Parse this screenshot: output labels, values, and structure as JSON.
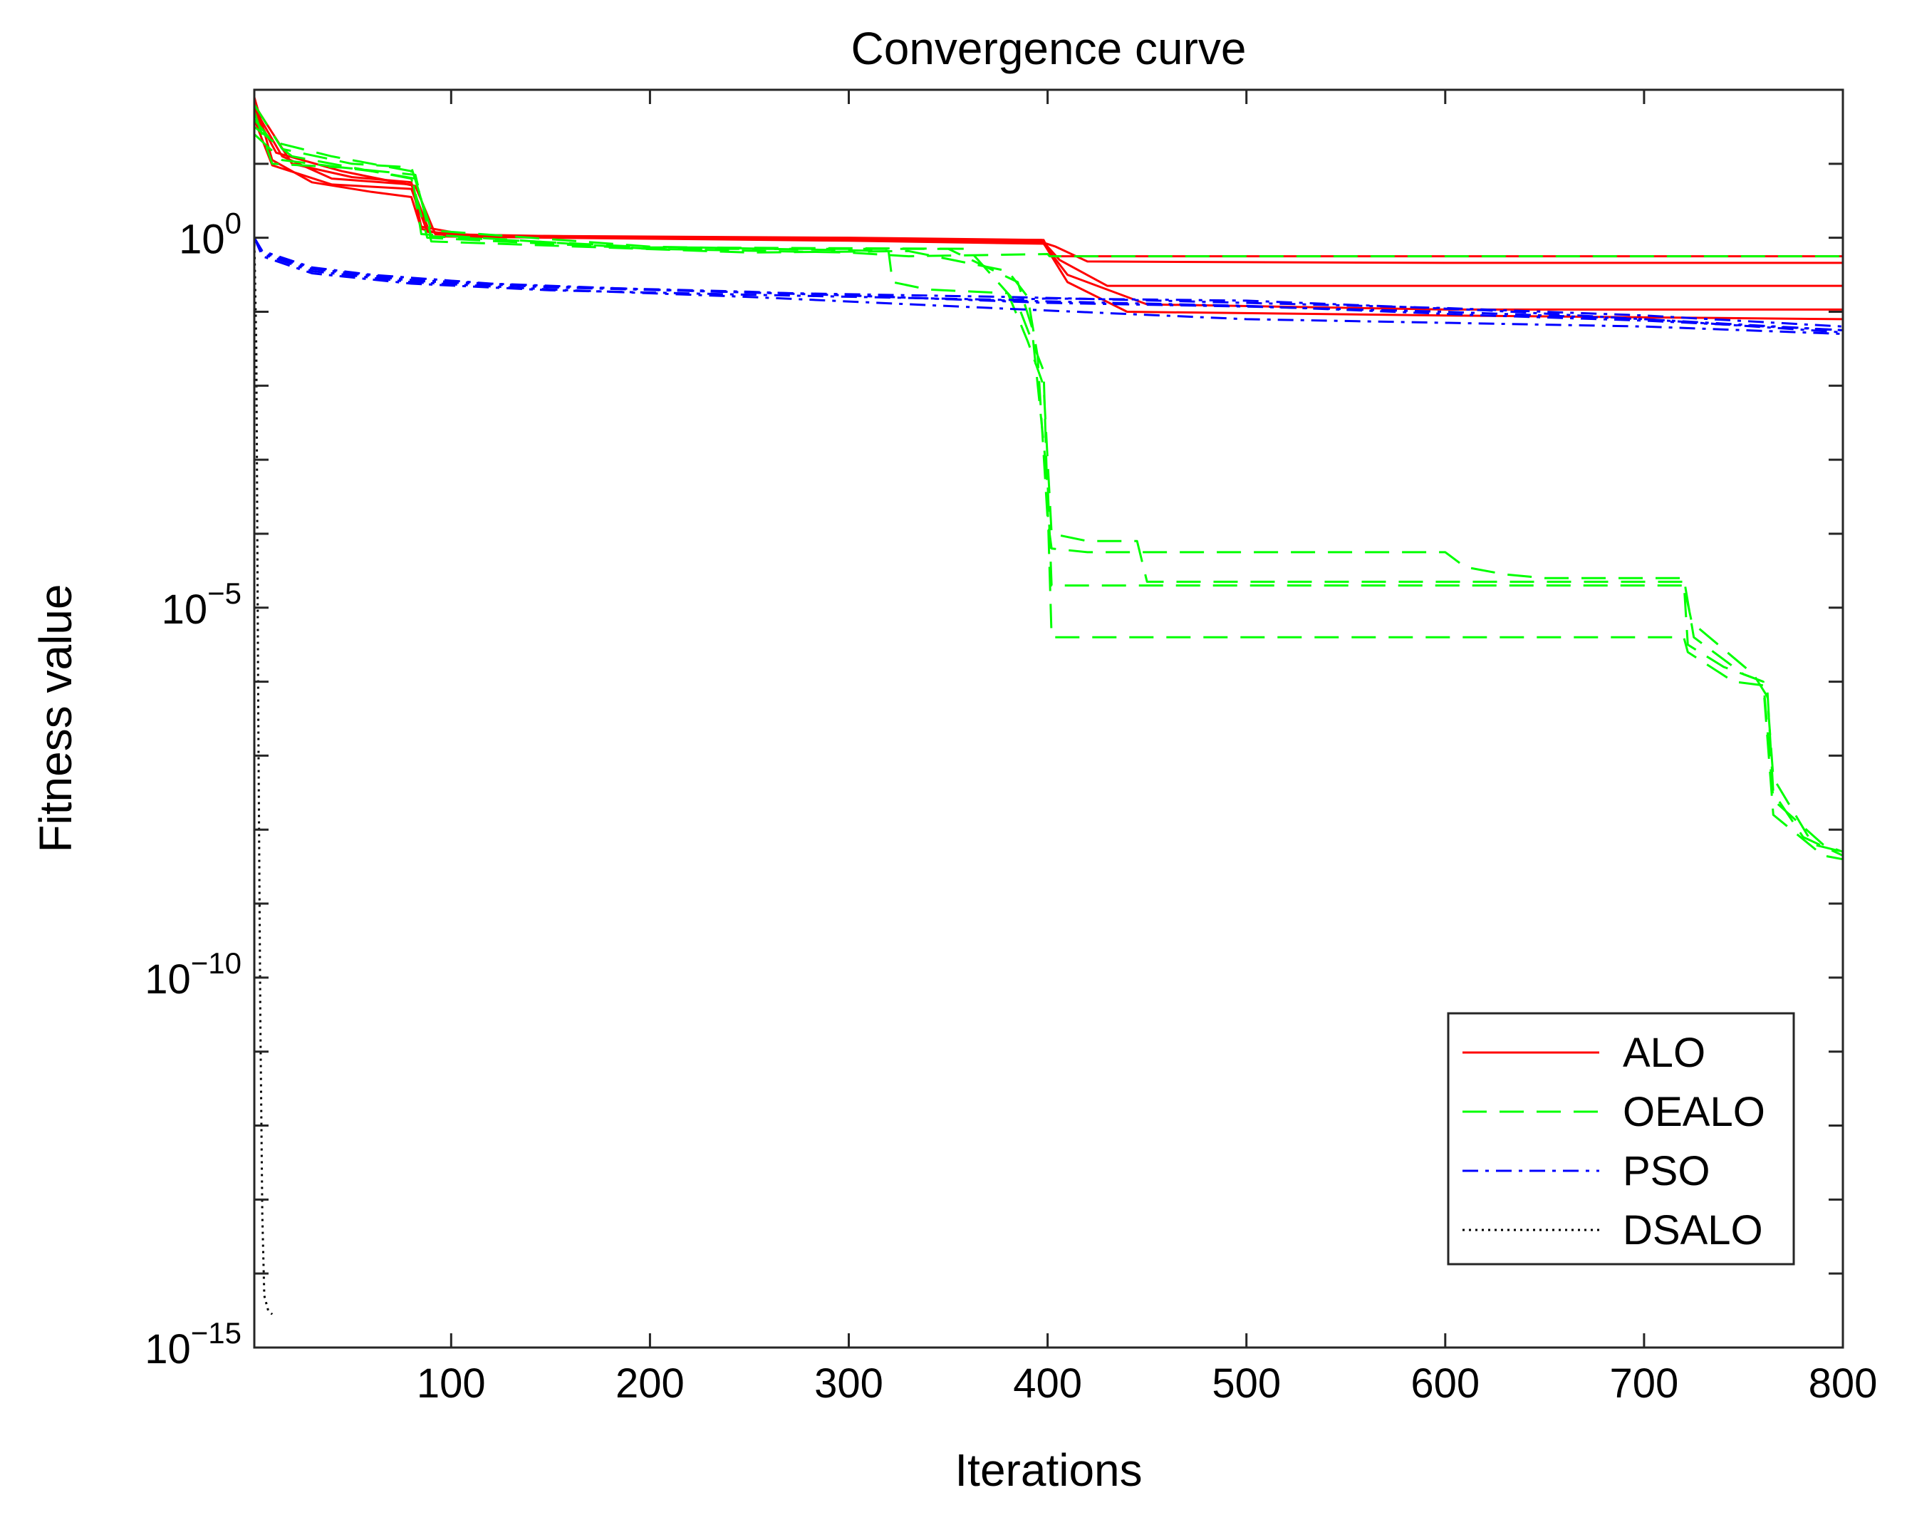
{
  "chart_data": {
    "type": "line",
    "title": "Convergence curve",
    "xlabel": "Iterations",
    "ylabel": "Fitness value",
    "xlim": [
      1,
      800
    ],
    "ylim_log10": [
      -15,
      2
    ],
    "xscale": "linear",
    "yscale": "log",
    "grid": false,
    "legend_position": "bottom-right",
    "x_ticks": [
      {
        "value": 100,
        "label": "100"
      },
      {
        "value": 200,
        "label": "200"
      },
      {
        "value": 300,
        "label": "300"
      },
      {
        "value": 400,
        "label": "400"
      },
      {
        "value": 500,
        "label": "500"
      },
      {
        "value": 600,
        "label": "600"
      },
      {
        "value": 700,
        "label": "700"
      },
      {
        "value": 800,
        "label": "800"
      }
    ],
    "y_ticks": [
      {
        "exp": 0,
        "base": "10",
        "sup": "0"
      },
      {
        "exp": -5,
        "base": "10",
        "sup": "−5"
      },
      {
        "exp": -10,
        "base": "10",
        "sup": "−10"
      },
      {
        "exp": -15,
        "base": "10",
        "sup": "−15"
      }
    ],
    "series": [
      {
        "name": "ALO",
        "color": "#ff0000",
        "dash": "solid",
        "in_legend": true,
        "runs": [
          [
            [
              1,
              1.9
            ],
            [
              10,
              1.05
            ],
            [
              30,
              0.75
            ],
            [
              60,
              0.62
            ],
            [
              80,
              0.55
            ],
            [
              85,
              0.12
            ],
            [
              100,
              0.02
            ],
            [
              200,
              0.0
            ],
            [
              300,
              -0.03
            ],
            [
              396,
              -0.05
            ],
            [
              404,
              -0.12
            ],
            [
              420,
              -0.32
            ],
            [
              500,
              -0.33
            ],
            [
              600,
              -0.34
            ],
            [
              700,
              -0.34
            ],
            [
              800,
              -0.34
            ]
          ],
          [
            [
              1,
              1.6
            ],
            [
              10,
              0.98
            ],
            [
              40,
              0.72
            ],
            [
              80,
              0.66
            ],
            [
              88,
              0.08
            ],
            [
              120,
              0.02
            ],
            [
              250,
              -0.02
            ],
            [
              398,
              -0.06
            ],
            [
              406,
              -0.3
            ],
            [
              430,
              -0.65
            ],
            [
              600,
              -0.65
            ],
            [
              800,
              -0.65
            ]
          ],
          [
            [
              1,
              1.75
            ],
            [
              15,
              1.1
            ],
            [
              40,
              0.8
            ],
            [
              80,
              0.72
            ],
            [
              90,
              0.02
            ],
            [
              150,
              0.0
            ],
            [
              300,
              -0.04
            ],
            [
              398,
              -0.08
            ],
            [
              410,
              -0.5
            ],
            [
              450,
              -0.9
            ],
            [
              600,
              -0.97
            ],
            [
              800,
              -0.97
            ]
          ],
          [
            [
              1,
              1.8
            ],
            [
              20,
              1.0
            ],
            [
              50,
              0.82
            ],
            [
              80,
              0.75
            ],
            [
              85,
              0.15
            ],
            [
              110,
              0.03
            ],
            [
              300,
              0.0
            ],
            [
              397,
              -0.03
            ],
            [
              410,
              -0.6
            ],
            [
              440,
              -1.0
            ],
            [
              600,
              -1.05
            ],
            [
              800,
              -1.1
            ]
          ],
          [
            [
              1,
              1.7
            ],
            [
              12,
              1.15
            ],
            [
              45,
              0.9
            ],
            [
              82,
              0.7
            ],
            [
              92,
              0.05
            ],
            [
              200,
              0.0
            ],
            [
              398,
              -0.03
            ],
            [
              402,
              -0.25
            ],
            [
              800,
              -0.25
            ]
          ]
        ]
      },
      {
        "name": "OEALO",
        "color": "#00ff00",
        "dash": "34 18",
        "in_legend": true,
        "runs": [
          [
            [
              1,
              1.6
            ],
            [
              10,
              1.3
            ],
            [
              40,
              1.1
            ],
            [
              80,
              0.9
            ],
            [
              85,
              0.05
            ],
            [
              200,
              -0.15
            ],
            [
              300,
              -0.2
            ],
            [
              330,
              -0.25
            ],
            [
              400,
              -0.22
            ],
            [
              401,
              -0.25
            ],
            [
              800,
              -0.25
            ]
          ],
          [
            [
              1,
              1.8
            ],
            [
              15,
              1.2
            ],
            [
              50,
              1.0
            ],
            [
              80,
              0.95
            ],
            [
              90,
              0.1
            ],
            [
              200,
              -0.12
            ],
            [
              320,
              -0.18
            ],
            [
              322,
              -0.6
            ],
            [
              340,
              -0.7
            ],
            [
              380,
              -0.75
            ],
            [
              390,
              -1.4
            ],
            [
              398,
              -2.0
            ],
            [
              402,
              -4.0
            ],
            [
              420,
              -4.1
            ],
            [
              445,
              -4.1
            ],
            [
              450,
              -4.65
            ],
            [
              600,
              -4.65
            ],
            [
              720,
              -4.65
            ],
            [
              722,
              -5.5
            ],
            [
              740,
              -5.8
            ],
            [
              760,
              -6.0
            ],
            [
              762,
              -6.1
            ],
            [
              765,
              -7.5
            ],
            [
              780,
              -8.1
            ],
            [
              800,
              -8.35
            ]
          ],
          [
            [
              1,
              1.7
            ],
            [
              10,
              1.0
            ],
            [
              45,
              0.95
            ],
            [
              82,
              0.85
            ],
            [
              90,
              -0.05
            ],
            [
              250,
              -0.2
            ],
            [
              330,
              -0.18
            ],
            [
              380,
              -0.45
            ],
            [
              390,
              -0.8
            ],
            [
              395,
              -1.6
            ],
            [
              400,
              -3.8
            ],
            [
              402,
              -4.2
            ],
            [
              420,
              -4.25
            ],
            [
              600,
              -4.25
            ],
            [
              610,
              -4.45
            ],
            [
              630,
              -4.55
            ],
            [
              650,
              -4.6
            ],
            [
              720,
              -4.6
            ],
            [
              725,
              -5.4
            ],
            [
              750,
              -5.9
            ],
            [
              760,
              -6.0
            ],
            [
              765,
              -7.6
            ],
            [
              790,
              -8.2
            ],
            [
              800,
              -8.3
            ]
          ],
          [
            [
              1,
              1.5
            ],
            [
              20,
              1.1
            ],
            [
              60,
              0.9
            ],
            [
              80,
              0.8
            ],
            [
              88,
              0.0
            ],
            [
              200,
              -0.15
            ],
            [
              350,
              -0.15
            ],
            [
              385,
              -0.6
            ],
            [
              392,
              -1.2
            ],
            [
              400,
              -3.3
            ],
            [
              402,
              -4.7
            ],
            [
              720,
              -4.7
            ],
            [
              724,
              -5.2
            ],
            [
              755,
              -5.9
            ],
            [
              762,
              -6.2
            ],
            [
              765,
              -7.3
            ],
            [
              785,
              -8.2
            ],
            [
              800,
              -8.3
            ]
          ],
          [
            [
              1,
              1.4
            ],
            [
              15,
              1.05
            ],
            [
              60,
              0.9
            ],
            [
              82,
              0.8
            ],
            [
              90,
              0.02
            ],
            [
              200,
              -0.13
            ],
            [
              360,
              -0.15
            ],
            [
              385,
              -0.9
            ],
            [
              398,
              -1.8
            ],
            [
              402,
              -5.4
            ],
            [
              720,
              -5.4
            ],
            [
              722,
              -5.6
            ],
            [
              745,
              -6.0
            ],
            [
              760,
              -6.05
            ],
            [
              765,
              -7.8
            ],
            [
              790,
              -8.35
            ],
            [
              800,
              -8.4
            ]
          ]
        ]
      },
      {
        "name": "PSO",
        "color": "#0000ff",
        "dash": "22 10 5 10",
        "in_legend": true,
        "runs": [
          [
            [
              1,
              0.0
            ],
            [
              5,
              -0.18
            ],
            [
              30,
              -0.4
            ],
            [
              60,
              -0.5
            ],
            [
              120,
              -0.62
            ],
            [
              200,
              -0.7
            ],
            [
              300,
              -0.78
            ],
            [
              400,
              -0.88
            ],
            [
              500,
              -0.93
            ],
            [
              600,
              -1.0
            ],
            [
              700,
              -1.1
            ],
            [
              800,
              -1.25
            ]
          ],
          [
            [
              1,
              0.0
            ],
            [
              5,
              -0.2
            ],
            [
              30,
              -0.42
            ],
            [
              80,
              -0.58
            ],
            [
              150,
              -0.67
            ],
            [
              250,
              -0.74
            ],
            [
              380,
              -0.8
            ],
            [
              500,
              -0.88
            ],
            [
              600,
              -0.95
            ],
            [
              700,
              -1.05
            ],
            [
              800,
              -1.2
            ]
          ],
          [
            [
              1,
              0.0
            ],
            [
              5,
              -0.25
            ],
            [
              30,
              -0.48
            ],
            [
              80,
              -0.62
            ],
            [
              150,
              -0.71
            ],
            [
              250,
              -0.77
            ],
            [
              380,
              -0.84
            ],
            [
              400,
              -0.82
            ],
            [
              500,
              -0.85
            ],
            [
              620,
              -0.98
            ],
            [
              700,
              -1.1
            ],
            [
              800,
              -1.28
            ]
          ],
          [
            [
              1,
              0.0
            ],
            [
              5,
              -0.22
            ],
            [
              30,
              -0.45
            ],
            [
              80,
              -0.6
            ],
            [
              150,
              -0.7
            ],
            [
              250,
              -0.8
            ],
            [
              380,
              -0.96
            ],
            [
              500,
              -1.1
            ],
            [
              600,
              -1.15
            ],
            [
              700,
              -1.2
            ],
            [
              800,
              -1.3
            ]
          ],
          [
            [
              1,
              0.0
            ],
            [
              5,
              -0.2
            ],
            [
              30,
              -0.42
            ],
            [
              80,
              -0.57
            ],
            [
              150,
              -0.66
            ],
            [
              250,
              -0.73
            ],
            [
              350,
              -0.83
            ],
            [
              500,
              -0.92
            ],
            [
              620,
              -1.05
            ],
            [
              700,
              -1.12
            ],
            [
              800,
              -1.25
            ]
          ]
        ]
      },
      {
        "name": "DSALO",
        "color": "#000000",
        "dash": "3 6",
        "in_legend": true,
        "runs": [
          [
            [
              1,
              0.0
            ],
            [
              2,
              -1.5
            ],
            [
              3,
              -6.5
            ],
            [
              4,
              -10.5
            ],
            [
              5,
              -13.2
            ],
            [
              6,
              -14.3
            ],
            [
              8,
              -14.5
            ],
            [
              10,
              -14.55
            ]
          ]
        ]
      }
    ]
  }
}
